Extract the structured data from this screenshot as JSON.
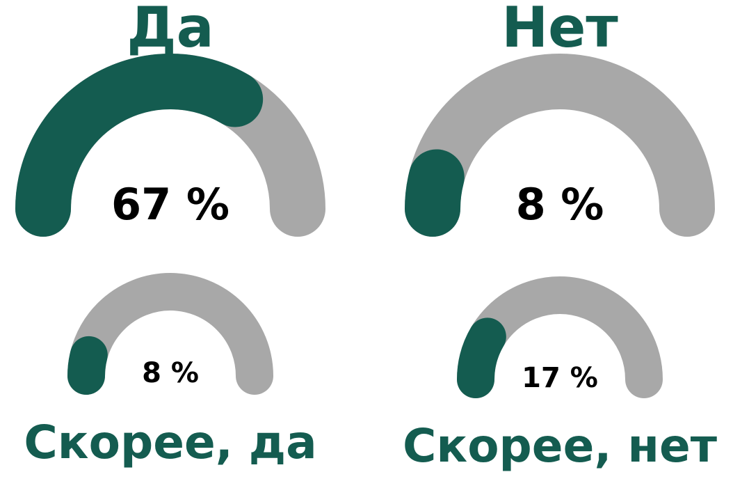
{
  "chart_data": [
    {
      "type": "gauge",
      "title": "Да",
      "values": [
        67
      ],
      "value_labels": [
        "67 %"
      ],
      "ylim": [
        0,
        100
      ],
      "color": "#145c50",
      "track_color": "#a8a8a8"
    },
    {
      "type": "gauge",
      "title": "Нет",
      "values": [
        8
      ],
      "value_labels": [
        "8 %"
      ],
      "ylim": [
        0,
        100
      ],
      "color": "#145c50",
      "track_color": "#a8a8a8"
    },
    {
      "type": "gauge",
      "title": "Скорее, да",
      "values": [
        8
      ],
      "value_labels": [
        "8 %"
      ],
      "ylim": [
        0,
        100
      ],
      "color": "#145c50",
      "track_color": "#a8a8a8"
    },
    {
      "type": "gauge",
      "title": "Скорее, нет",
      "values": [
        17
      ],
      "value_labels": [
        "17 %"
      ],
      "ylim": [
        0,
        100
      ],
      "color": "#145c50",
      "track_color": "#a8a8a8"
    }
  ]
}
